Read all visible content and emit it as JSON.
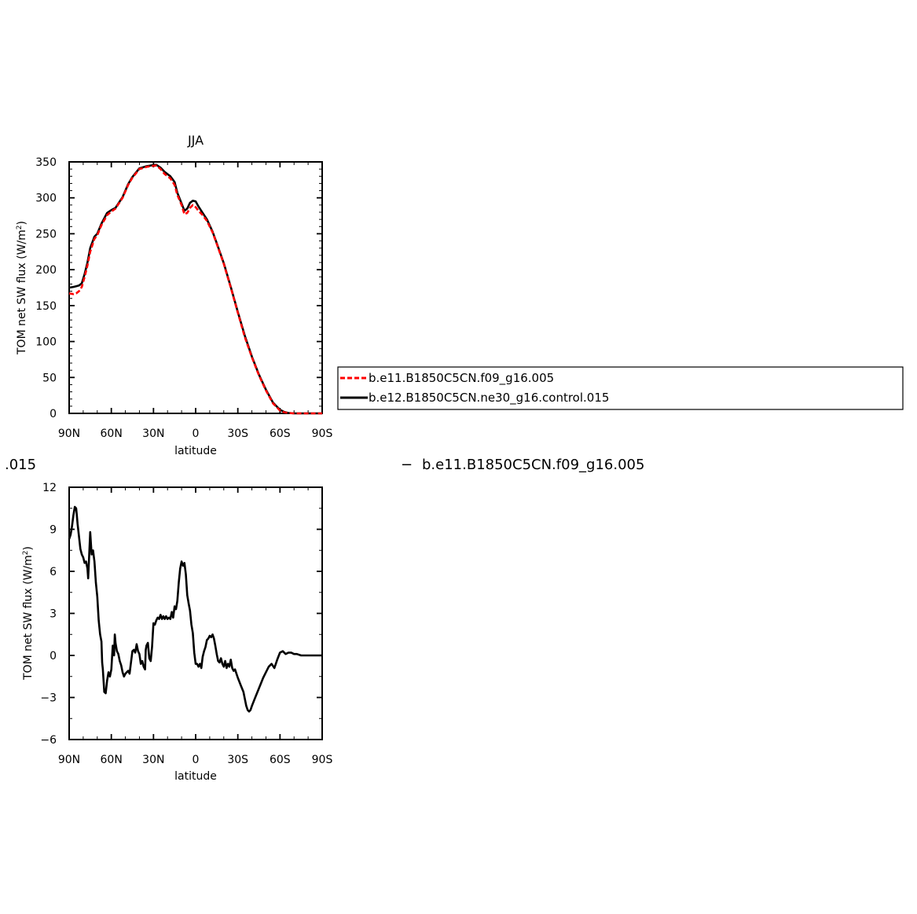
{
  "chart_data": [
    {
      "type": "line",
      "title": "JJA",
      "xlabel": "latitude",
      "ylabel_prefix": "TOM net SW flux (W/m",
      "ylabel_sup": "2",
      "ylabel_suffix": ")",
      "xlim": [
        90,
        -90
      ],
      "ylim": [
        0,
        350
      ],
      "xticks": [
        {
          "value": 90,
          "label": "90N"
        },
        {
          "value": 60,
          "label": "60N"
        },
        {
          "value": 30,
          "label": "30N"
        },
        {
          "value": 0,
          "label": "0"
        },
        {
          "value": -30,
          "label": "30S"
        },
        {
          "value": -60,
          "label": "60S"
        },
        {
          "value": -90,
          "label": "90S"
        }
      ],
      "yticks": [
        {
          "value": 0,
          "label": "0"
        },
        {
          "value": 50,
          "label": "50"
        },
        {
          "value": 100,
          "label": "100"
        },
        {
          "value": 150,
          "label": "150"
        },
        {
          "value": 200,
          "label": "200"
        },
        {
          "value": 250,
          "label": "250"
        },
        {
          "value": 300,
          "label": "300"
        },
        {
          "value": 350,
          "label": "350"
        }
      ],
      "legend": {
        "placement": "right"
      },
      "series": [
        {
          "name": "b.e11.B1850C5CN.f09_g16.005",
          "color": "#ff0000",
          "dash": "dashed",
          "x": [
            90,
            87,
            85,
            83,
            81,
            79,
            77,
            75,
            72,
            70,
            67,
            63,
            60,
            57,
            52,
            48,
            45,
            40,
            35,
            32,
            28,
            25,
            22,
            18,
            15,
            13,
            10,
            8,
            6,
            4,
            2,
            0,
            -2,
            -5,
            -8,
            -12,
            -15,
            -20,
            -25,
            -30,
            -35,
            -40,
            -45,
            -50,
            -55,
            -60,
            -63,
            -66,
            -70,
            -75,
            -80,
            -90
          ],
          "y": [
            167,
            166,
            167,
            170,
            176,
            190,
            206,
            225,
            243,
            248,
            262,
            276,
            281,
            285,
            300,
            318,
            328,
            340,
            343,
            344,
            345,
            340,
            333,
            327,
            318,
            304,
            290,
            277,
            279,
            286,
            290,
            287,
            282,
            276,
            268,
            252,
            236,
            208,
            175,
            140,
            106,
            78,
            53,
            32,
            14,
            4,
            1.5,
            0.5,
            0,
            0,
            0,
            0
          ]
        },
        {
          "name": "b.e12.B1850C5CN.ne30_g16.control.015",
          "color": "#000000",
          "dash": "solid",
          "x": [
            90,
            87,
            85,
            83,
            81,
            79,
            77,
            75,
            72,
            70,
            67,
            63,
            60,
            57,
            52,
            48,
            45,
            40,
            35,
            32,
            28,
            25,
            22,
            18,
            15,
            13,
            10,
            8,
            6,
            4,
            2,
            0,
            -2,
            -5,
            -8,
            -12,
            -15,
            -20,
            -25,
            -30,
            -35,
            -40,
            -45,
            -50,
            -55,
            -60,
            -63,
            -66,
            -70,
            -75,
            -80,
            -90
          ],
          "y": [
            175,
            176,
            177,
            178,
            181,
            194,
            210,
            230,
            246,
            250,
            264,
            279,
            283,
            286,
            301,
            319,
            329,
            341,
            344,
            345,
            346,
            342,
            336,
            330,
            322,
            307,
            292,
            282,
            285,
            293,
            296,
            295,
            288,
            279,
            270,
            253,
            237,
            209,
            176,
            141,
            108,
            79,
            54,
            33,
            15,
            5,
            2,
            0.5,
            0,
            0,
            0,
            0
          ]
        }
      ]
    },
    {
      "type": "line",
      "title": "",
      "xlabel": "latitude",
      "ylabel_prefix": "TOM net SW flux (W/m",
      "ylabel_sup": "2",
      "ylabel_suffix": ")",
      "xlim": [
        90,
        -90
      ],
      "ylim": [
        -6,
        12
      ],
      "xticks": [
        {
          "value": 90,
          "label": "90N"
        },
        {
          "value": 60,
          "label": "60N"
        },
        {
          "value": 30,
          "label": "30N"
        },
        {
          "value": 0,
          "label": "0"
        },
        {
          "value": -30,
          "label": "30S"
        },
        {
          "value": -60,
          "label": "60S"
        },
        {
          "value": -90,
          "label": "90S"
        }
      ],
      "yticks": [
        {
          "value": -6,
          "label": "−6"
        },
        {
          "value": -3,
          "label": "−3"
        },
        {
          "value": 0,
          "label": "0"
        },
        {
          "value": 3,
          "label": "3"
        },
        {
          "value": 6,
          "label": "6"
        },
        {
          "value": 9,
          "label": "9"
        },
        {
          "value": 12,
          "label": "12"
        }
      ],
      "series": [
        {
          "name": "",
          "color": "#000000",
          "dash": "solid",
          "x": [
            90,
            89,
            88,
            87,
            86,
            85,
            84.5,
            84,
            83,
            82,
            81,
            80,
            79,
            78,
            77,
            76.5,
            76,
            75,
            74,
            73,
            72,
            71,
            70,
            69,
            68,
            67,
            66.5,
            66,
            65,
            64,
            63,
            62,
            61,
            60,
            59,
            58,
            57.5,
            57,
            56,
            55,
            54,
            53,
            52,
            51,
            50,
            49,
            48,
            47,
            46,
            45,
            44,
            43,
            42,
            41,
            40,
            39,
            38,
            37,
            36,
            35.5,
            35,
            34,
            33,
            32,
            31,
            30,
            29,
            28,
            27,
            26,
            25,
            24,
            23,
            22,
            21,
            20,
            19,
            18,
            17,
            16,
            15,
            14,
            13,
            12,
            11,
            10,
            9,
            8,
            7,
            6,
            5,
            4,
            3,
            2,
            1,
            0,
            -1,
            -2,
            -3,
            -4,
            -5,
            -6,
            -7,
            -8,
            -9,
            -10,
            -11,
            -12,
            -13,
            -14,
            -15,
            -16,
            -17,
            -18,
            -19,
            -20,
            -21,
            -22,
            -23,
            -24,
            -25,
            -26,
            -27,
            -28,
            -30,
            -32,
            -34,
            -36,
            -37,
            -38,
            -39,
            -40,
            -42,
            -44,
            -46,
            -48,
            -50,
            -52,
            -54,
            -56,
            -58,
            -60,
            -62,
            -64,
            -66,
            -68,
            -70,
            -72,
            -75,
            -80,
            -85,
            -90
          ],
          "y": [
            8.3,
            8.6,
            9.2,
            10.0,
            10.6,
            10.5,
            10.0,
            9.4,
            8.5,
            7.6,
            7.2,
            7.0,
            6.6,
            6.7,
            6.2,
            5.5,
            6.5,
            8.8,
            7.2,
            7.5,
            6.7,
            5.2,
            4.2,
            2.5,
            1.5,
            1.0,
            -0.5,
            -1.0,
            -2.6,
            -2.7,
            -1.8,
            -1.2,
            -1.5,
            -1.0,
            0.7,
            0.0,
            1.5,
            0.9,
            0.3,
            0.1,
            -0.4,
            -0.7,
            -1.2,
            -1.5,
            -1.3,
            -1.2,
            -1.1,
            -1.3,
            -0.5,
            0.3,
            0.4,
            0.2,
            0.8,
            0.3,
            0.1,
            -0.6,
            -0.4,
            -0.8,
            -1.0,
            0.4,
            0.7,
            0.9,
            -0.2,
            -0.4,
            0.6,
            2.3,
            2.2,
            2.5,
            2.7,
            2.6,
            2.9,
            2.6,
            2.8,
            2.6,
            2.8,
            2.6,
            2.7,
            2.6,
            3.1,
            2.7,
            3.5,
            3.3,
            3.9,
            5.2,
            6.2,
            6.7,
            6.4,
            6.6,
            5.8,
            4.3,
            3.7,
            3.2,
            2.2,
            1.6,
            0.2,
            -0.6,
            -0.6,
            -0.8,
            -0.6,
            -0.9,
            -0.1,
            0.3,
            0.6,
            1.1,
            1.2,
            1.4,
            1.3,
            1.5,
            1.2,
            0.7,
            0.1,
            -0.4,
            -0.5,
            -0.2,
            -0.6,
            -0.8,
            -0.4,
            -0.9,
            -0.6,
            -0.8,
            -0.3,
            -0.9,
            -1.1,
            -1.0,
            -1.6,
            -2.1,
            -2.6,
            -3.6,
            -3.9,
            -4.0,
            -3.9,
            -3.6,
            -3.1,
            -2.6,
            -2.1,
            -1.6,
            -1.2,
            -0.8,
            -0.6,
            -0.9,
            -0.3,
            0.2,
            0.3,
            0.1,
            0.2,
            0.2,
            0.1,
            0.1,
            0.0,
            0.0,
            0.0,
            0.0
          ]
        }
      ]
    }
  ],
  "stray_labels": {
    "left": ".015",
    "right_dash": "−",
    "right": "b.e11.B1850C5CN.f09_g16.005"
  }
}
